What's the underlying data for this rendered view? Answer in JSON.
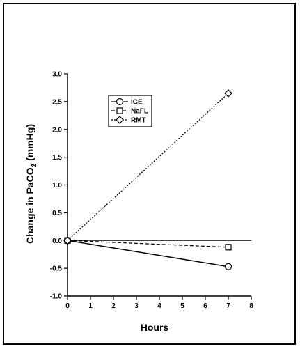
{
  "chart_data": {
    "type": "line",
    "xlabel": "Hours",
    "ylabel": "Change in PaCO",
    "ylabel_sub": "2",
    "ylabel_unit": " (mmHg)",
    "xlim": [
      0,
      8
    ],
    "ylim": [
      -1.0,
      3.0
    ],
    "x_ticks": [
      "0",
      "1",
      "2",
      "3",
      "4",
      "5",
      "6",
      "7",
      "8"
    ],
    "y_ticks": [
      "-1.0",
      "-0.5",
      "0.0",
      "0.5",
      "1.0",
      "1.5",
      "2.0",
      "2.5",
      "3.0"
    ],
    "reference_line_y": 0,
    "legend_position": "top-left",
    "series": [
      {
        "name": "ICE",
        "marker": "circle",
        "line": "solid",
        "x": [
          0,
          7
        ],
        "y": [
          0.0,
          -0.47
        ]
      },
      {
        "name": "NaFL",
        "marker": "square",
        "line": "dashed",
        "x": [
          0,
          7
        ],
        "y": [
          0.0,
          -0.12
        ]
      },
      {
        "name": "RMT",
        "marker": "diamond",
        "line": "dotted",
        "x": [
          0,
          7
        ],
        "y": [
          0.0,
          2.65
        ]
      }
    ]
  }
}
